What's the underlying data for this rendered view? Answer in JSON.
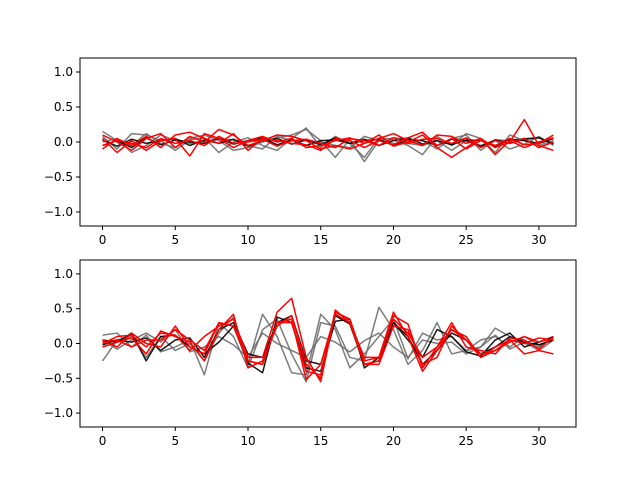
{
  "chart_data": [
    {
      "type": "line",
      "xlim": [
        -1.55,
        32.55
      ],
      "ylim": [
        -1.2,
        1.2
      ],
      "xticks": [
        0,
        5,
        10,
        15,
        20,
        25,
        30
      ],
      "yticks": [
        1.0,
        0.5,
        0.0,
        -0.5,
        -1.0
      ],
      "xtick_labels": [
        "0",
        "5",
        "10",
        "15",
        "20",
        "25",
        "30"
      ],
      "ytick_labels": [
        "1.0",
        "0.5",
        "0.0",
        "−0.5",
        "−1.0"
      ],
      "series_colors": {
        "gray": "#6e6e6e",
        "black": "#000000",
        "red": "#ff0000"
      },
      "series": [
        {
          "color": "gray",
          "values": [
            0.15,
            0.02,
            -0.05,
            0.12,
            -0.02,
            -0.08,
            0.05,
            0.1,
            0.02,
            -0.12,
            -0.08,
            0.0,
            0.06,
            0.1,
            0.18,
            0.02,
            -0.22,
            0.04,
            -0.28,
            0.02,
            0.06,
            0.04,
            0.02,
            -0.1,
            0.05,
            0.1,
            -0.12,
            0.03,
            0.02,
            0.05,
            0.06,
            -0.02
          ]
        },
        {
          "color": "gray",
          "values": [
            0.08,
            -0.1,
            0.12,
            0.1,
            0.02,
            -0.12,
            0.03,
            0.06,
            -0.15,
            0.0,
            0.06,
            -0.05,
            -0.12,
            0.05,
            0.2,
            -0.08,
            0.08,
            -0.02,
            -0.22,
            0.06,
            0.03,
            -0.05,
            -0.18,
            0.08,
            -0.05,
            0.12,
            0.05,
            -0.15,
            0.1,
            0.02,
            -0.05,
            0.02
          ]
        },
        {
          "color": "gray",
          "values": [
            0.0,
            0.05,
            -0.15,
            -0.05,
            0.1,
            0.02,
            -0.02,
            0.02,
            0.04,
            0.03,
            -0.05,
            -0.1,
            0.08,
            0.02,
            0.02,
            0.0,
            -0.05,
            -0.08,
            0.08,
            0.02,
            -0.02,
            -0.02,
            -0.05,
            0.02,
            -0.12,
            0.02,
            -0.05,
            0.02,
            -0.1,
            -0.03,
            0.08,
            -0.05
          ]
        },
        {
          "color": "black",
          "values": [
            -0.05,
            0.02,
            -0.08,
            0.06,
            -0.04,
            0.03,
            0.0,
            -0.02,
            0.05,
            -0.03,
            0.02,
            0.06,
            -0.04,
            0.03,
            -0.05,
            0.02,
            0.03,
            -0.02,
            0.04,
            -0.05,
            0.02,
            0.06,
            -0.03,
            0.02,
            -0.04,
            0.03,
            0.02,
            -0.06,
            0.04,
            0.02,
            -0.02,
            0.05
          ]
        },
        {
          "color": "black",
          "values": [
            0.03,
            -0.06,
            0.04,
            -0.02,
            0.02,
            0.05,
            -0.05,
            0.03,
            -0.02,
            0.04,
            -0.06,
            0.02,
            0.05,
            -0.03,
            0.03,
            -0.04,
            0.06,
            -0.02,
            0.02,
            0.04,
            -0.05,
            0.03,
            0.02,
            -0.05,
            0.04,
            0.02,
            -0.06,
            0.03,
            -0.02,
            0.04,
            0.06,
            -0.03
          ]
        },
        {
          "color": "red",
          "values": [
            0.1,
            0.0,
            -0.12,
            0.05,
            0.12,
            -0.08,
            0.08,
            0.0,
            0.18,
            0.1,
            -0.05,
            0.02,
            0.1,
            0.08,
            0.02,
            -0.1,
            -0.05,
            -0.1,
            -0.02,
            0.05,
            0.12,
            0.02,
            -0.05,
            0.1,
            0.08,
            -0.02,
            0.05,
            -0.08,
            0.0,
            0.32,
            -0.05,
            -0.12
          ]
        },
        {
          "color": "red",
          "values": [
            -0.1,
            0.05,
            -0.05,
            0.08,
            -0.08,
            0.1,
            0.14,
            0.05,
            -0.02,
            0.12,
            -0.12,
            0.06,
            0.02,
            -0.02,
            -0.04,
            -0.12,
            0.05,
            0.02,
            -0.08,
            0.02,
            -0.04,
            0.06,
            0.14,
            -0.05,
            0.05,
            -0.1,
            0.02,
            -0.05,
            0.05,
            -0.04,
            -0.02,
            0.1
          ]
        },
        {
          "color": "red",
          "values": [
            0.05,
            -0.15,
            0.02,
            -0.12,
            0.02,
            0.05,
            -0.2,
            0.12,
            0.05,
            -0.08,
            0.02,
            0.08,
            0.0,
            0.05,
            -0.08,
            -0.05,
            0.02,
            0.06,
            -0.02,
            0.1,
            -0.06,
            0.0,
            0.1,
            -0.08,
            -0.22,
            -0.08,
            0.05,
            -0.18,
            0.02,
            -0.08,
            0.0,
            0.06
          ]
        },
        {
          "color": "red",
          "values": [
            -0.05,
            0.02,
            -0.02,
            -0.08,
            0.05,
            -0.02,
            0.02,
            -0.05,
            0.08,
            -0.02,
            0.0,
            0.04,
            -0.06,
            0.02,
            0.04,
            -0.02,
            -0.08,
            0.05,
            0.02,
            -0.05,
            0.06,
            -0.02,
            0.04,
            0.05,
            -0.02,
            0.06,
            -0.08,
            0.02,
            -0.02,
            0.05,
            -0.08,
            0.0
          ]
        }
      ]
    },
    {
      "type": "line",
      "xlim": [
        -1.55,
        32.55
      ],
      "ylim": [
        -1.2,
        1.2
      ],
      "xticks": [
        0,
        5,
        10,
        15,
        20,
        25,
        30
      ],
      "yticks": [
        1.0,
        0.5,
        0.0,
        -0.5,
        -1.0
      ],
      "xtick_labels": [
        "0",
        "5",
        "10",
        "15",
        "20",
        "25",
        "30"
      ],
      "ytick_labels": [
        "1.0",
        "0.5",
        "0.0",
        "−0.5",
        "−1.0"
      ],
      "series_colors": {
        "gray": "#6e6e6e",
        "black": "#000000",
        "red": "#ff0000"
      },
      "series": [
        {
          "color": "gray",
          "values": [
            0.12,
            0.15,
            -0.05,
            0.12,
            -0.12,
            -0.05,
            0.05,
            -0.45,
            0.3,
            0.1,
            -0.35,
            0.2,
            0.35,
            -0.15,
            -0.55,
            0.3,
            0.25,
            -0.2,
            -0.25,
            0.52,
            0.2,
            -0.3,
            -0.1,
            0.3,
            -0.15,
            -0.1,
            -0.05,
            0.22,
            0.1,
            0.0,
            -0.05,
            0.1
          ]
        },
        {
          "color": "gray",
          "values": [
            -0.25,
            0.05,
            0.1,
            -0.2,
            0.1,
            -0.1,
            0.0,
            -0.25,
            0.15,
            0.38,
            -0.3,
            0.42,
            0.1,
            -0.42,
            -0.45,
            0.42,
            0.2,
            -0.35,
            -0.15,
            0.1,
            0.35,
            -0.22,
            0.15,
            0.05,
            0.1,
            -0.1,
            0.05,
            0.1,
            -0.05,
            0.1,
            -0.02,
            0.05
          ]
        },
        {
          "color": "gray",
          "values": [
            0.05,
            -0.08,
            0.05,
            0.15,
            0.02,
            0.2,
            -0.12,
            -0.05,
            0.1,
            -0.02,
            -0.2,
            0.15,
            0.0,
            -0.1,
            -0.2,
            0.1,
            0.02,
            -0.12,
            0.04,
            0.15,
            -0.05,
            -0.2,
            0.05,
            0.0,
            0.02,
            -0.15,
            -0.05,
            0.12,
            -0.08,
            0.02,
            -0.1,
            0.05
          ]
        },
        {
          "color": "black",
          "values": [
            0.05,
            0.02,
            0.15,
            -0.25,
            0.1,
            0.12,
            -0.05,
            -0.15,
            0.02,
            0.25,
            -0.28,
            -0.42,
            0.38,
            0.3,
            -0.35,
            -0.4,
            0.32,
            0.35,
            -0.35,
            -0.2,
            0.3,
            0.05,
            -0.2,
            0.2,
            0.1,
            -0.12,
            -0.18,
            0.05,
            0.15,
            -0.05,
            0.02,
            0.1
          ]
        },
        {
          "color": "black",
          "values": [
            -0.02,
            0.05,
            0.02,
            0.08,
            -0.1,
            0.05,
            0.08,
            -0.2,
            0.2,
            0.3,
            -0.15,
            -0.2,
            0.3,
            0.4,
            -0.25,
            -0.3,
            0.4,
            0.28,
            -0.3,
            -0.25,
            0.3,
            0.1,
            -0.3,
            -0.1,
            0.15,
            0.05,
            -0.15,
            -0.05,
            0.1,
            0.02,
            -0.02,
            0.05
          ]
        },
        {
          "color": "red",
          "values": [
            0.0,
            0.1,
            0.12,
            -0.05,
            0.15,
            0.12,
            -0.1,
            0.1,
            0.25,
            0.35,
            -0.2,
            -0.2,
            0.45,
            0.65,
            -0.2,
            -0.55,
            0.45,
            0.35,
            -0.25,
            -0.2,
            0.45,
            0.1,
            -0.4,
            -0.1,
            0.2,
            0.1,
            -0.2,
            -0.1,
            0.05,
            -0.15,
            -0.1,
            -0.15
          ]
        },
        {
          "color": "red",
          "values": [
            0.05,
            -0.05,
            0.15,
            0.0,
            -0.05,
            0.25,
            -0.05,
            -0.15,
            0.3,
            0.25,
            -0.25,
            -0.3,
            0.3,
            0.35,
            -0.52,
            -0.3,
            0.42,
            0.3,
            -0.2,
            -0.2,
            0.35,
            0.15,
            -0.2,
            -0.05,
            0.2,
            0.05,
            -0.15,
            -0.1,
            0.02,
            0.1,
            0.02,
            0.08
          ]
        },
        {
          "color": "red",
          "values": [
            -0.05,
            0.02,
            0.08,
            -0.15,
            0.18,
            0.1,
            0.02,
            -0.25,
            0.2,
            0.42,
            -0.35,
            -0.25,
            0.25,
            0.4,
            -0.3,
            -0.5,
            0.48,
            0.3,
            -0.3,
            -0.25,
            0.4,
            0.28,
            -0.35,
            -0.05,
            0.3,
            -0.05,
            -0.1,
            -0.15,
            0.08,
            0.05,
            -0.08,
            0.1
          ]
        },
        {
          "color": "red",
          "values": [
            0.02,
            0.05,
            -0.05,
            0.05,
            0.05,
            0.2,
            0.05,
            -0.1,
            0.3,
            0.25,
            -0.25,
            -0.3,
            0.3,
            0.3,
            -0.4,
            -0.45,
            0.45,
            0.35,
            -0.3,
            -0.3,
            0.25,
            0.2,
            -0.3,
            -0.2,
            0.25,
            0.05,
            -0.2,
            -0.05,
            0.05,
            0.0,
            0.08,
            0.05
          ]
        }
      ]
    }
  ]
}
